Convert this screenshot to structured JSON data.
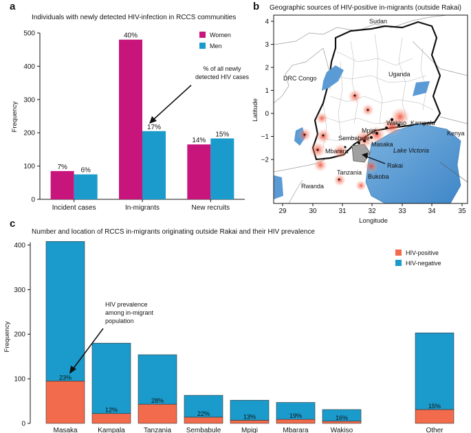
{
  "colors": {
    "women": "#c7157c",
    "men": "#1a9bcc",
    "hiv_pos": "#f26b4c",
    "hiv_neg": "#1a9bcc",
    "lake": "#5b9bd5"
  },
  "panel_a": {
    "letter": "a",
    "title": "Individuals with newly detected HIV-infection in RCCS communities",
    "ylabel": "Frequency",
    "legend": [
      "Women",
      "Men"
    ],
    "annotation": [
      "% of all newly",
      "detected HIV cases"
    ]
  },
  "panel_b": {
    "letter": "b",
    "title": "Geographic sources of HIV-positive in-migrants (outside Rakai)",
    "xlabel": "Longitude",
    "ylabel": "Latitude",
    "xticks": [
      "29",
      "30",
      "31",
      "32",
      "33",
      "34",
      "35"
    ],
    "yticks": [
      "4",
      "3",
      "2",
      "1",
      "0",
      "−1",
      "−2"
    ],
    "countries": [
      "Sudan",
      "Uganda",
      "DRC Congo",
      "Kenya",
      "Tanzania",
      "Rwanda"
    ],
    "places": [
      "Wakiso",
      "Kampala",
      "Mpigi",
      "Sembabule",
      "Masaka",
      "Mbarara",
      "Rakai",
      "Bukoba"
    ],
    "lake": "Lake Victoria"
  },
  "panel_c": {
    "letter": "c",
    "title": "Number and location of RCCS in-migrants originating outside Rakai and their HIV prevalence",
    "ylabel": "Frequency",
    "legend": [
      "HIV-positive",
      "HIV-negative"
    ],
    "annotation": [
      "HIV prevalence",
      "among in-migrant",
      "population"
    ]
  },
  "chart_data": [
    {
      "type": "bar",
      "title": "Individuals with newly detected HIV-infection in RCCS communities",
      "categories": [
        "Incident cases",
        "In-migrants",
        "New recruits"
      ],
      "series": [
        {
          "name": "Women",
          "values": [
            85,
            480,
            165
          ],
          "labels": [
            "7%",
            "40%",
            "14%"
          ]
        },
        {
          "name": "Men",
          "values": [
            75,
            205,
            183
          ],
          "labels": [
            "6%",
            "17%",
            "15%"
          ]
        }
      ],
      "ylabel": "Frequency",
      "ylim": [
        0,
        500
      ],
      "yticks": [
        0,
        100,
        200,
        300,
        400,
        500
      ]
    },
    {
      "type": "bar",
      "stacked": true,
      "title": "Number and location of RCCS in-migrants originating outside Rakai and their HIV prevalence",
      "categories": [
        "Masaka",
        "Kampala",
        "Tanzania",
        "Sembabule",
        "Mpigi",
        "Mbarara",
        "Wakiso",
        "Other"
      ],
      "series": [
        {
          "name": "HIV-positive",
          "values": [
            95,
            22,
            43,
            14,
            7,
            9,
            5,
            31
          ]
        },
        {
          "name": "HIV-negative",
          "values": [
            313,
            158,
            111,
            49,
            45,
            38,
            26,
            172
          ]
        }
      ],
      "totals": [
        408,
        180,
        154,
        63,
        52,
        47,
        31,
        203
      ],
      "prevalence_labels": [
        "23%",
        "12%",
        "28%",
        "22%",
        "13%",
        "19%",
        "16%",
        "15%"
      ],
      "ylabel": "Frequency",
      "ylim": [
        0,
        410
      ],
      "yticks": [
        0,
        100,
        200,
        300,
        400
      ]
    }
  ]
}
